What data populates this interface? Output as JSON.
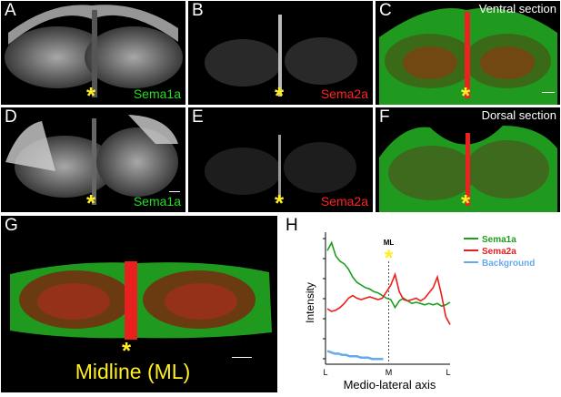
{
  "panels": {
    "a": {
      "label": "A",
      "channel": "Sema1a"
    },
    "b": {
      "label": "B",
      "channel": "Sema2a"
    },
    "c": {
      "label": "C",
      "section": "Ventral section"
    },
    "d": {
      "label": "D",
      "channel": "Sema1a"
    },
    "e": {
      "label": "E",
      "channel": "Sema2a"
    },
    "f": {
      "label": "F",
      "section": "Dorsal section"
    },
    "g": {
      "label": "G",
      "midline": "Midline (ML)"
    },
    "h": {
      "label": "H"
    }
  },
  "star": "*",
  "colors": {
    "sema1a": "#1aa01a",
    "sema2a": "#ee1c1c",
    "background": "#66aaee",
    "star": "#ffee22"
  },
  "chart_data": {
    "type": "line",
    "ylabel": "Intensity",
    "xlabel": "Medio-lateral axis",
    "x_ticks": [
      "L",
      "M",
      "L"
    ],
    "annotation": "ML",
    "series": [
      {
        "name": "Sema1a",
        "values": [
          0.86,
          0.92,
          0.82,
          0.78,
          0.76,
          0.72,
          0.66,
          0.62,
          0.6,
          0.58,
          0.57,
          0.55,
          0.54,
          0.52,
          0.5,
          0.49,
          0.43,
          0.48,
          0.5,
          0.48,
          0.46,
          0.47,
          0.46,
          0.45,
          0.46,
          0.45,
          0.46,
          0.44,
          0.45,
          0.47
        ]
      },
      {
        "name": "Sema2a",
        "values": [
          0.42,
          0.4,
          0.41,
          0.43,
          0.46,
          0.5,
          0.52,
          0.5,
          0.49,
          0.5,
          0.51,
          0.5,
          0.49,
          0.5,
          0.55,
          0.6,
          0.68,
          0.55,
          0.49,
          0.48,
          0.49,
          0.5,
          0.48,
          0.5,
          0.54,
          0.58,
          0.66,
          0.52,
          0.36,
          0.3
        ]
      },
      {
        "name": "Background",
        "values": [
          0.1,
          0.09,
          0.08,
          0.08,
          0.07,
          0.07,
          0.06,
          0.06,
          0.06,
          0.05,
          0.05,
          0.05,
          0.04,
          0.04,
          0.04,
          0.04
        ]
      }
    ]
  }
}
